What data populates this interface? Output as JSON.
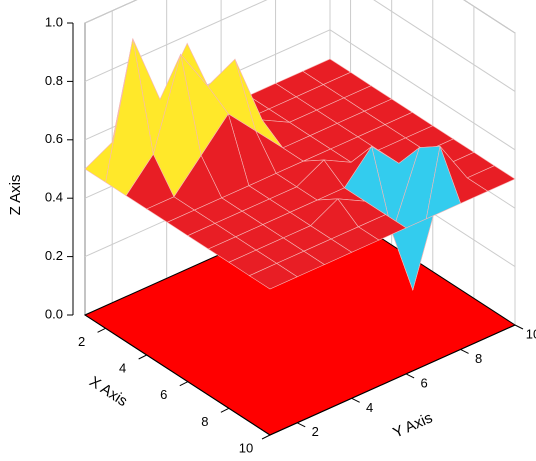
{
  "chart_data": {
    "type": "surface",
    "x_label": "X Axis",
    "y_label": "Y Axis",
    "z_label": "Z Axis",
    "x": [
      1,
      2,
      3,
      4,
      5,
      6,
      7,
      8,
      9,
      10
    ],
    "y": [
      1,
      2,
      3,
      4,
      5,
      6,
      7,
      8,
      9,
      10
    ],
    "z": [
      [
        0.5,
        0.55,
        0.6,
        0.5,
        0.5,
        0.5,
        0.5,
        0.5,
        0.5,
        0.5
      ],
      [
        0.5,
        0.95,
        0.7,
        0.85,
        0.6,
        0.5,
        0.5,
        0.5,
        0.5,
        0.5
      ],
      [
        0.5,
        0.6,
        0.9,
        0.75,
        0.8,
        0.55,
        0.5,
        0.5,
        0.5,
        0.5
      ],
      [
        0.5,
        0.5,
        0.6,
        0.7,
        0.6,
        0.5,
        0.5,
        0.5,
        0.5,
        0.5
      ],
      [
        0.5,
        0.5,
        0.5,
        0.5,
        0.5,
        0.5,
        0.5,
        0.5,
        0.5,
        0.5
      ],
      [
        0.5,
        0.5,
        0.5,
        0.5,
        0.5,
        0.55,
        0.5,
        0.5,
        0.5,
        0.5
      ],
      [
        0.5,
        0.5,
        0.5,
        0.5,
        0.5,
        0.5,
        0.6,
        0.5,
        0.5,
        0.5
      ],
      [
        0.5,
        0.5,
        0.5,
        0.5,
        0.55,
        0.5,
        0.35,
        0.6,
        0.5,
        0.5
      ],
      [
        0.5,
        0.5,
        0.5,
        0.5,
        0.5,
        0.5,
        0.2,
        0.65,
        0.5,
        0.5
      ],
      [
        0.5,
        0.5,
        0.5,
        0.5,
        0.5,
        0.5,
        0.5,
        0.5,
        0.5,
        0.5
      ]
    ],
    "xlim": [
      1,
      10
    ],
    "ylim": [
      1,
      10
    ],
    "zlim": [
      0,
      1
    ],
    "xticks": [
      2,
      4,
      6,
      8,
      10
    ],
    "yticks": [
      2,
      4,
      6,
      8,
      10
    ],
    "zticks": [
      {
        "value": 0,
        "label": "0.0"
      },
      {
        "value": 0.2,
        "label": "0.2"
      },
      {
        "value": 0.4,
        "label": "0.4"
      },
      {
        "value": 0.6,
        "label": "0.6"
      },
      {
        "value": 0.8,
        "label": "0.8"
      },
      {
        "value": 1,
        "label": "1.0"
      }
    ],
    "grid": true,
    "colors": {
      "low": "#33ccee",
      "mid": "#e81e25",
      "high": "#ffe82a",
      "floor": "#ff0000"
    }
  }
}
